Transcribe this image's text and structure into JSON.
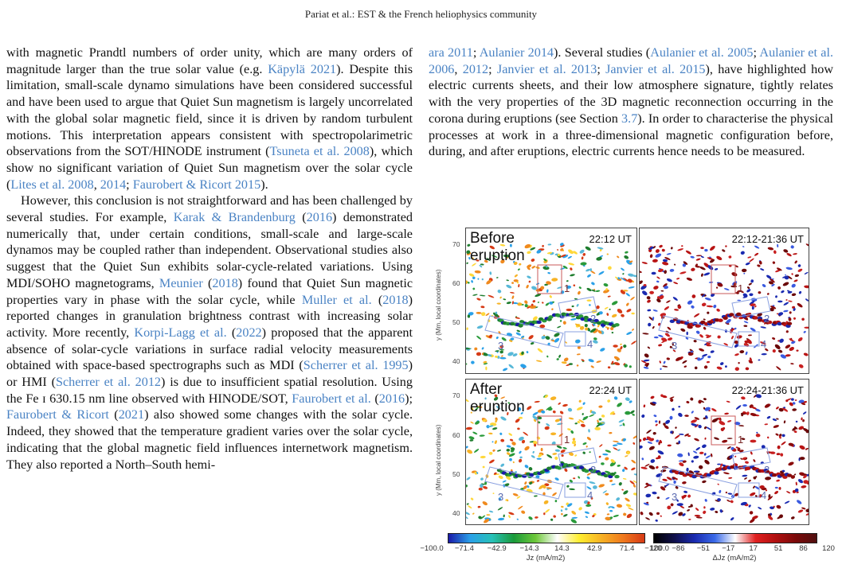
{
  "header": {
    "running_head": "Pariat et al.: EST & the French heliophysics community"
  },
  "left_column": {
    "p1": [
      {
        "t": "with magnetic Prandtl numbers of order unity, which are many orders of magnitude larger than the true solar value (e.g. "
      },
      {
        "t": "Käpylä 2021",
        "ref": true
      },
      {
        "t": "). Despite this limitation, small-scale dynamo simulations have been considered successful and have been used to argue that Quiet Sun magnetism is largely uncorrelated with the global solar magnetic field, since it is driven by random turbulent motions. This interpretation appears consistent with spectropolarimetric observations from the SOT/HINODE instrument ("
      },
      {
        "t": "Tsuneta et al. 2008",
        "ref": true
      },
      {
        "t": "), which show no significant variation of Quiet Sun magnetism over the solar cycle ("
      },
      {
        "t": "Lites et al. 2008",
        "ref": true
      },
      {
        "t": ", "
      },
      {
        "t": "2014",
        "ref": true
      },
      {
        "t": "; "
      },
      {
        "t": "Faurobert & Ricort 2015",
        "ref": true
      },
      {
        "t": ")."
      }
    ],
    "p2": [
      {
        "t": "However, this conclusion is not straightforward and has been challenged by several studies. For example, "
      },
      {
        "t": "Karak & Brandenburg",
        "ref": true
      },
      {
        "t": " ("
      },
      {
        "t": "2016",
        "ref": true
      },
      {
        "t": ") demonstrated numerically that, under certain conditions, small-scale and large-scale dynamos may be coupled rather than independent. Observational studies also suggest that the Quiet Sun exhibits solar-cycle-related variations. Using MDI/SOHO magnetograms, "
      },
      {
        "t": "Meunier",
        "ref": true
      },
      {
        "t": " ("
      },
      {
        "t": "2018",
        "ref": true
      },
      {
        "t": ") found that Quiet Sun magnetic properties vary in phase with the solar cycle, while "
      },
      {
        "t": "Muller et al.",
        "ref": true
      },
      {
        "t": " ("
      },
      {
        "t": "2018",
        "ref": true
      },
      {
        "t": ") reported changes in granulation brightness contrast with increasing solar activity. More recently, "
      },
      {
        "t": "Korpi-Lagg et al.",
        "ref": true
      },
      {
        "t": " ("
      },
      {
        "t": "2022",
        "ref": true
      },
      {
        "t": ") proposed that the apparent absence of solar-cycle variations in surface radial velocity measurements obtained with space-based spectrographs such as MDI ("
      },
      {
        "t": "Scherrer et al. 1995",
        "ref": true
      },
      {
        "t": ") or HMI ("
      },
      {
        "t": "Scherrer et al. 2012",
        "ref": true
      },
      {
        "t": ") is due to insufficient spatial resolution. Using the Fe ɪ 630.15 nm line observed with HINODE/SOT, "
      },
      {
        "t": "Faurobert et al.",
        "ref": true
      },
      {
        "t": " ("
      },
      {
        "t": "2016",
        "ref": true
      },
      {
        "t": "); "
      },
      {
        "t": "Faurobert & Ricort",
        "ref": true
      },
      {
        "t": " ("
      },
      {
        "t": "2021",
        "ref": true
      },
      {
        "t": ") also showed some changes with the solar cycle. Indeed, they showed that the temperature gradient varies over the solar cycle, indicating that the global magnetic field influences internetwork magnetism. They also reported a North–South hemi-"
      }
    ]
  },
  "right_column": {
    "p1": [
      {
        "t": "ara 2011",
        "ref": true
      },
      {
        "t": "; "
      },
      {
        "t": "Aulanier 2014",
        "ref": true
      },
      {
        "t": "). Several studies ("
      },
      {
        "t": "Aulanier et al. 2005",
        "ref": true
      },
      {
        "t": "; "
      },
      {
        "t": "Aulanier et al. 2006",
        "ref": true
      },
      {
        "t": ", "
      },
      {
        "t": "2012",
        "ref": true
      },
      {
        "t": "; "
      },
      {
        "t": "Janvier et al. 2013",
        "ref": true
      },
      {
        "t": "; "
      },
      {
        "t": "Janvier et al. 2015",
        "ref": true
      },
      {
        "t": "), have highlighted how electric currents sheets, and their low atmosphere signature, tightly relates with the very properties of the 3D magnetic reconnection occurring in the corona during eruptions (see Section "
      },
      {
        "t": "3.7",
        "ref": true
      },
      {
        "t": "). In order to characterise the physical processes at work in a three-dimensional magnetic configuration before, during, and after eruptions, electric currents hence needs to be measured."
      }
    ]
  },
  "figure": {
    "ylabel": "y (Mm, local coordinates)",
    "yticks": [
      "70",
      "60",
      "50",
      "40"
    ],
    "panels": [
      {
        "big_label": "Before eruption",
        "time": "22:12 UT"
      },
      {
        "time": "22:12-21:36 UT"
      },
      {
        "big_label": "After eruption",
        "time": "22:24 UT"
      },
      {
        "time": "22:24-21:36 UT"
      }
    ],
    "box_labels": [
      "1",
      "2",
      "3",
      "4"
    ],
    "colorbar_left": {
      "ticks": [
        "−100.0",
        "−71.4",
        "−42.9",
        "−14.3",
        "14.3",
        "42.9",
        "71.4",
        "100.0"
      ],
      "title": "Jz (mA/m2)",
      "colors": [
        "#1a1aa8",
        "#2aa0e8",
        "#28c1b8",
        "#1a9a3a",
        "#6ec83a",
        "#ffffff",
        "#ffee30",
        "#f7b325",
        "#f07a1e",
        "#d63a16"
      ]
    },
    "colorbar_right": {
      "ticks": [
        "−120",
        "−86",
        "−51",
        "−17",
        "17",
        "51",
        "86",
        "120"
      ],
      "title": "ΔJz (mA/m2)",
      "colors": [
        "#000000",
        "#10104a",
        "#1a2ab0",
        "#3a6ae8",
        "#ffffff",
        "#e02020",
        "#b01010",
        "#7a0a0a",
        "#501010"
      ]
    }
  }
}
